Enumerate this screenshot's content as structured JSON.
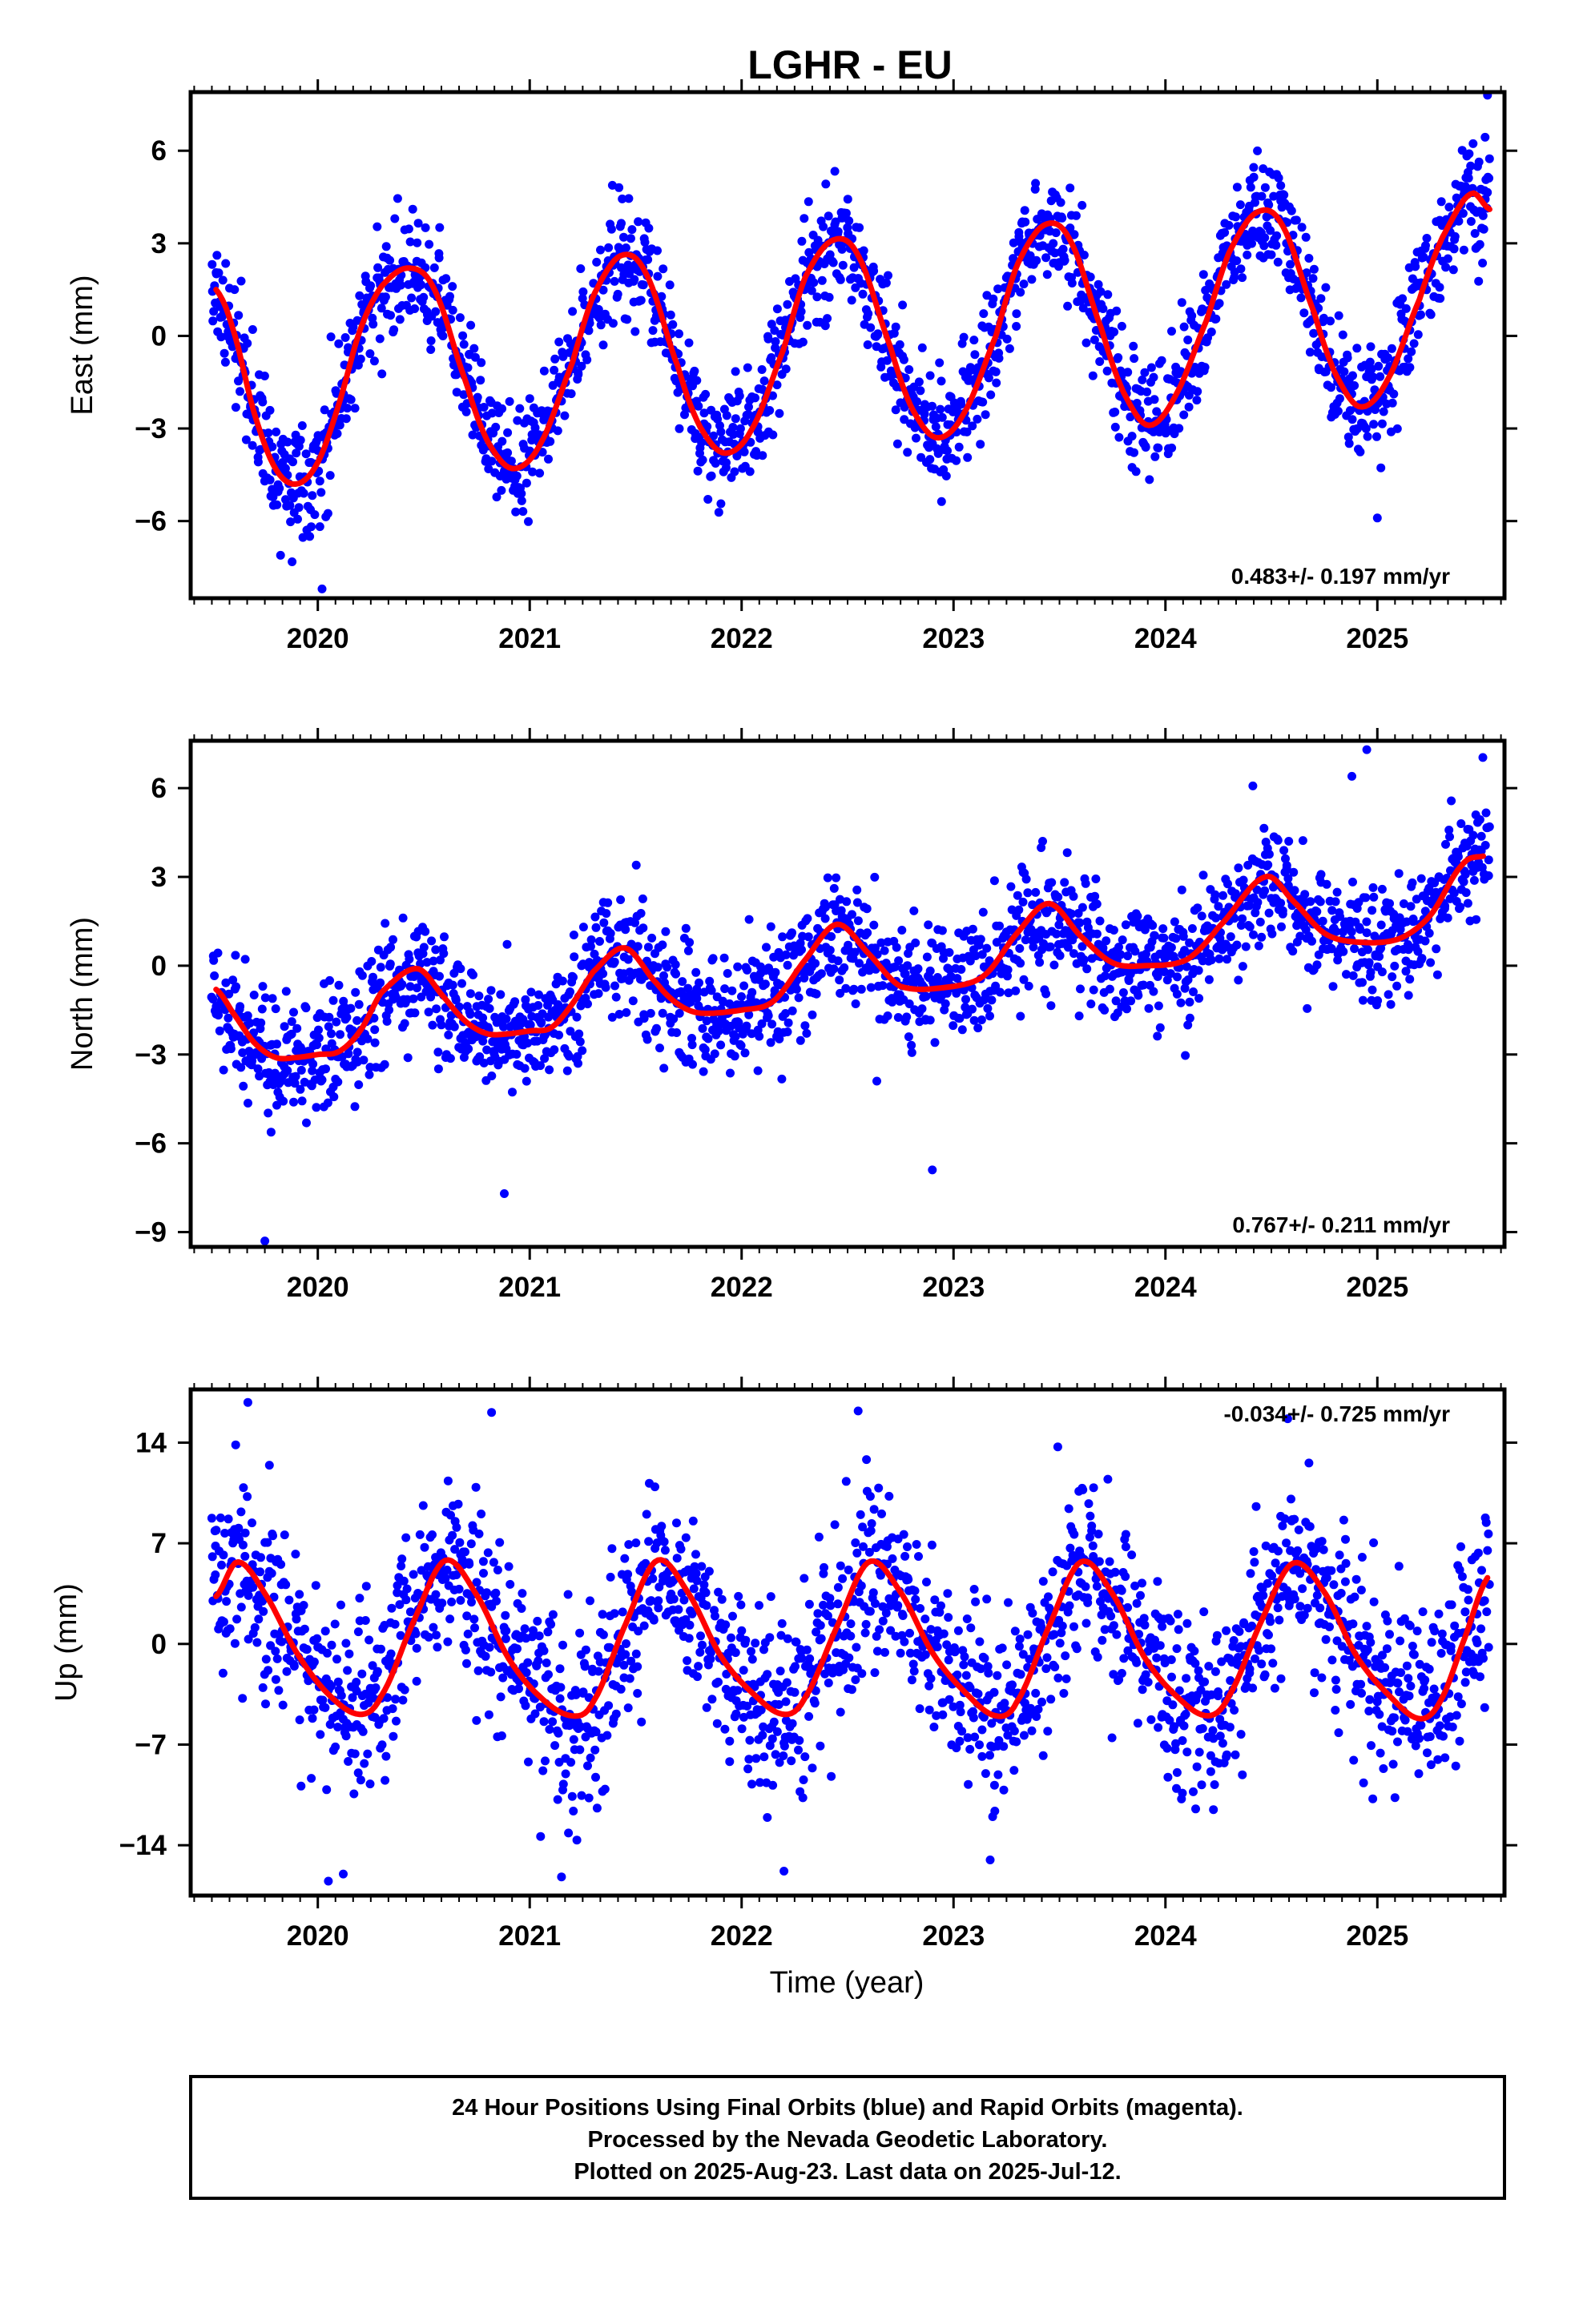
{
  "title": "LGHR - EU",
  "colors": {
    "points": "#0000ff",
    "fit": "#ff0000",
    "frame": "#000000"
  },
  "xlabel": "Time (year)",
  "footer": {
    "line1": "24 Hour Positions Using Final Orbits (blue) and Rapid Orbits (magenta).",
    "line2": "Processed by the Nevada Geodetic Laboratory.",
    "line3": "Plotted on 2025-Aug-23. Last data on 2025-Jul-12."
  },
  "chart_data": [
    {
      "type": "scatter",
      "ylabel": "East (mm)",
      "rate_text": "0.483+/- 0.197 mm/yr",
      "rate_position": "bottom-right",
      "xlim": [
        2019.4,
        2025.6
      ],
      "ylim": [
        -8.5,
        7.9
      ],
      "x_ticks": [
        2020,
        2021,
        2022,
        2023,
        2024,
        2025
      ],
      "y_ticks": [
        -6,
        -3,
        0,
        3,
        6
      ],
      "y_tick_labels": [
        "−6",
        "−3",
        "0",
        "3",
        "6"
      ],
      "series": [
        {
          "kind": "line",
          "x": [
            2019.52,
            2019.6,
            2019.7,
            2019.8,
            2019.9,
            2020.0,
            2020.1,
            2020.2,
            2020.3,
            2020.43,
            2020.55,
            2020.7,
            2020.8,
            2020.92,
            2021.05,
            2021.2,
            2021.3,
            2021.43,
            2021.55,
            2021.7,
            2021.8,
            2021.92,
            2022.05,
            2022.2,
            2022.3,
            2022.43,
            2022.55,
            2022.7,
            2022.8,
            2022.92,
            2023.05,
            2023.2,
            2023.3,
            2023.43,
            2023.55,
            2023.7,
            2023.8,
            2023.92,
            2024.05,
            2024.2,
            2024.3,
            2024.43,
            2024.55,
            2024.7,
            2024.8,
            2024.92,
            2025.05,
            2025.2,
            2025.3,
            2025.44,
            2025.53
          ],
          "y": [
            1.5,
            0.2,
            -2.5,
            -4.3,
            -4.8,
            -4.1,
            -2.2,
            0.2,
            1.6,
            2.2,
            1.5,
            -1.5,
            -3.4,
            -4.3,
            -3.5,
            -0.9,
            1.3,
            2.6,
            2.0,
            -1.0,
            -2.9,
            -3.8,
            -3.0,
            -0.4,
            1.9,
            3.1,
            2.6,
            -0.3,
            -2.3,
            -3.3,
            -2.5,
            0.0,
            2.3,
            3.6,
            3.1,
            0.2,
            -1.8,
            -2.9,
            -1.9,
            0.6,
            2.7,
            4.0,
            3.6,
            0.8,
            -1.2,
            -2.3,
            -1.4,
            1.2,
            3.1,
            4.6,
            4.1
          ]
        }
      ],
      "point_model": {
        "n": 1900,
        "x_start": 2019.5,
        "x_end": 2025.53,
        "mean": "fit-line",
        "scatter_sd": 0.9,
        "outliers": [
          [
            2020.02,
            -8.2
          ],
          [
            2025.52,
            7.8
          ],
          [
            2025.0,
            -5.9
          ]
        ]
      }
    },
    {
      "type": "scatter",
      "ylabel": "North (mm)",
      "rate_text": "0.767+/- 0.211 mm/yr",
      "rate_position": "bottom-right",
      "xlim": [
        2019.4,
        2025.6
      ],
      "ylim": [
        -9.5,
        7.6
      ],
      "x_ticks": [
        2020,
        2021,
        2022,
        2023,
        2024,
        2025
      ],
      "y_ticks": [
        -9,
        -6,
        -3,
        0,
        3,
        6
      ],
      "y_tick_labels": [
        "−9",
        "−6",
        "−3",
        "0",
        "3",
        "6"
      ],
      "series": [
        {
          "kind": "line",
          "x": [
            2019.52,
            2019.6,
            2019.7,
            2019.8,
            2019.9,
            2020.0,
            2020.1,
            2020.2,
            2020.3,
            2020.47,
            2020.6,
            2020.7,
            2020.8,
            2020.9,
            2021.0,
            2021.1,
            2021.2,
            2021.3,
            2021.45,
            2021.6,
            2021.7,
            2021.8,
            2022.0,
            2022.15,
            2022.3,
            2022.45,
            2022.6,
            2022.75,
            2023.0,
            2023.15,
            2023.3,
            2023.45,
            2023.6,
            2023.75,
            2023.9,
            2024.1,
            2024.25,
            2024.47,
            2024.6,
            2024.75,
            2024.9,
            2025.1,
            2025.25,
            2025.4,
            2025.5
          ],
          "y": [
            -0.8,
            -1.6,
            -2.6,
            -3.1,
            -3.1,
            -3.0,
            -2.9,
            -2.2,
            -0.9,
            -0.1,
            -1.1,
            -1.9,
            -2.3,
            -2.3,
            -2.2,
            -2.1,
            -1.3,
            -0.2,
            0.6,
            -0.6,
            -1.3,
            -1.6,
            -1.5,
            -1.2,
            0.2,
            1.4,
            0.4,
            -0.7,
            -0.7,
            -0.3,
            1.1,
            2.1,
            1.0,
            0.1,
            0.0,
            0.2,
            1.3,
            3.0,
            2.2,
            1.1,
            0.8,
            0.9,
            1.7,
            3.4,
            3.7
          ]
        }
      ],
      "point_model": {
        "n": 1900,
        "x_start": 2019.5,
        "x_end": 2025.53,
        "mean": "fit-line",
        "scatter_sd": 1.0,
        "outliers": [
          [
            2019.75,
            -9.3
          ],
          [
            2020.88,
            -7.7
          ],
          [
            2022.9,
            -6.9
          ],
          [
            2024.95,
            7.3
          ],
          [
            2024.88,
            6.4
          ]
        ]
      }
    },
    {
      "type": "scatter",
      "ylabel": "Up (mm)",
      "rate_text": "-0.034+/- 0.725 mm/yr",
      "rate_position": "top-right",
      "xlim": [
        2019.4,
        2025.6
      ],
      "ylim": [
        -17.5,
        17.7
      ],
      "x_ticks": [
        2020,
        2021,
        2022,
        2023,
        2024,
        2025
      ],
      "y_ticks": [
        -14,
        -7,
        0,
        7,
        14
      ],
      "y_tick_labels": [
        "−14",
        "−7",
        "0",
        "7",
        "14"
      ],
      "series": [
        {
          "kind": "line",
          "x": [
            2019.52,
            2019.62,
            2019.75,
            2019.9,
            2020.05,
            2020.2,
            2020.3,
            2020.45,
            2020.6,
            2020.75,
            2020.9,
            2021.05,
            2021.2,
            2021.3,
            2021.45,
            2021.6,
            2021.75,
            2021.9,
            2022.05,
            2022.2,
            2022.3,
            2022.45,
            2022.6,
            2022.75,
            2022.9,
            2023.05,
            2023.2,
            2023.3,
            2023.45,
            2023.6,
            2023.75,
            2023.9,
            2024.05,
            2024.2,
            2024.3,
            2024.45,
            2024.6,
            2024.75,
            2024.9,
            2025.05,
            2025.2,
            2025.3,
            2025.42,
            2025.52
          ],
          "y": [
            3.3,
            5.7,
            3.5,
            -0.6,
            -3.5,
            -4.9,
            -3.6,
            1.5,
            5.8,
            3.4,
            -1.0,
            -3.7,
            -5.0,
            -4.0,
            1.3,
            5.8,
            3.5,
            -0.8,
            -3.4,
            -4.9,
            -3.7,
            1.2,
            5.7,
            3.6,
            -0.6,
            -3.3,
            -5.0,
            -4.0,
            1.2,
            5.7,
            3.5,
            -0.9,
            -3.6,
            -5.0,
            -3.6,
            1.5,
            5.6,
            3.6,
            -0.8,
            -3.5,
            -5.2,
            -3.9,
            0.7,
            4.6
          ]
        }
      ],
      "point_model": {
        "n": 1900,
        "x_start": 2019.5,
        "x_end": 2025.53,
        "mean": "fit-line",
        "scatter_sd": 3.2,
        "outliers": [
          [
            2019.67,
            16.8
          ],
          [
            2020.05,
            -16.5
          ],
          [
            2020.12,
            -16.0
          ],
          [
            2021.15,
            -16.2
          ],
          [
            2022.2,
            -15.8
          ],
          [
            2022.55,
            16.2
          ],
          [
            2020.82,
            16.1
          ]
        ]
      }
    }
  ]
}
